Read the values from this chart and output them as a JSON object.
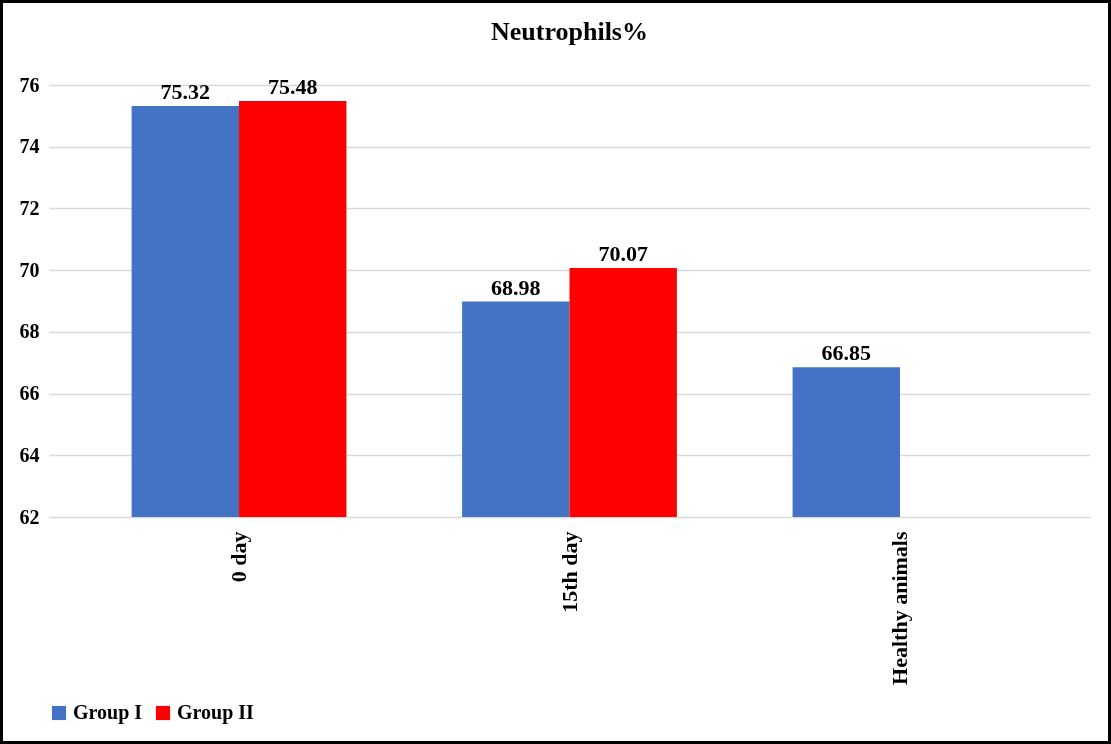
{
  "chart_data": {
    "type": "bar",
    "title": "Neutrophils%",
    "categories": [
      "0 day",
      "15th day",
      "Healthy animals"
    ],
    "series": [
      {
        "name": "Group I",
        "color": "#4472c4",
        "values": [
          75.32,
          68.98,
          66.85
        ]
      },
      {
        "name": "Group II",
        "color": "#ff0000",
        "values": [
          75.48,
          70.07,
          null
        ]
      }
    ],
    "ylim": [
      62,
      76
    ],
    "yticks": [
      62,
      64,
      66,
      68,
      70,
      72,
      74,
      76
    ],
    "grid": "y",
    "legend": "bottom",
    "data_labels": true
  }
}
